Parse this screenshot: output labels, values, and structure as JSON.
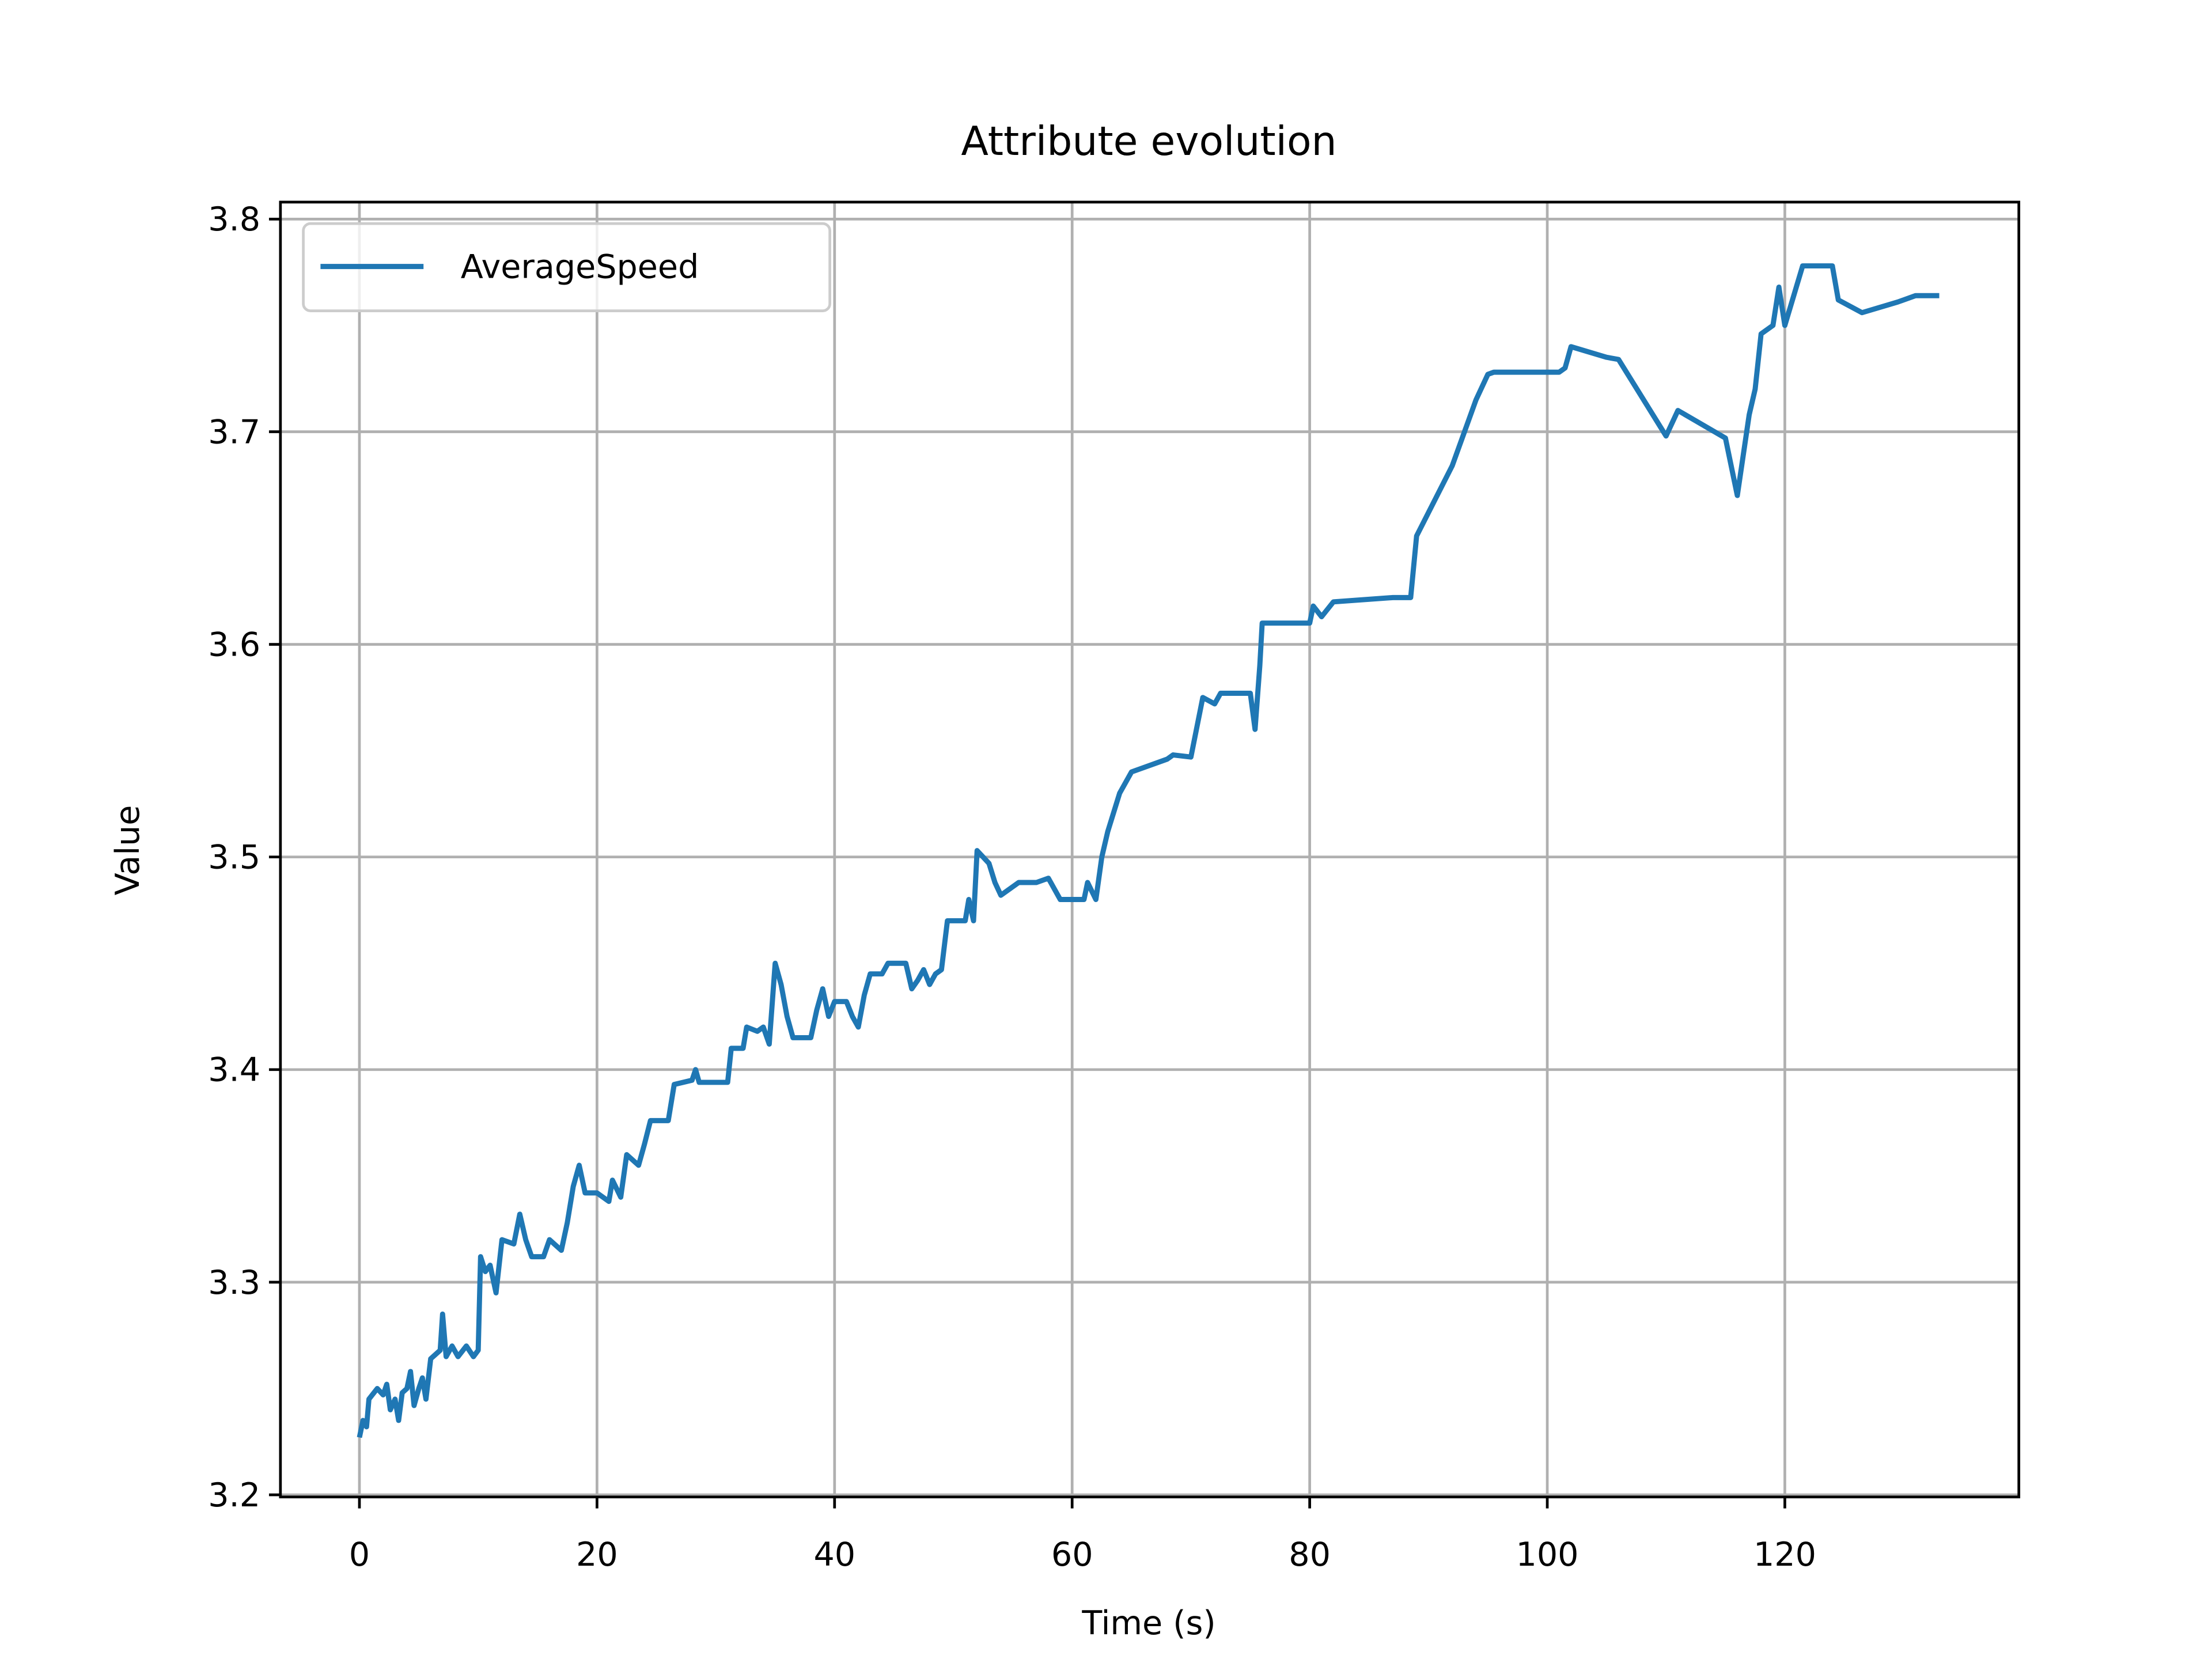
{
  "chart_data": {
    "type": "line",
    "title": "Attribute evolution",
    "x_label": "Time (s)",
    "y_label": "Value",
    "xlim": [
      -6.65,
      139.7
    ],
    "ylim": [
      3.199,
      3.808
    ],
    "xticks": [
      0,
      20,
      40,
      60,
      80,
      100,
      120
    ],
    "yticks": [
      3.2,
      3.3,
      3.4,
      3.5,
      3.6,
      3.7,
      3.8
    ],
    "grid": true,
    "legend": "upper left",
    "series": [
      {
        "name": "AverageSpeed",
        "color": "#1f77b4",
        "x": [
          0,
          0.3,
          0.6,
          0.8,
          1.5,
          2,
          2.3,
          2.6,
          3,
          3.3,
          3.6,
          4,
          4.3,
          4.6,
          5,
          5.3,
          5.6,
          6,
          6.8,
          7,
          7.3,
          7.8,
          8.3,
          9,
          9.6,
          10,
          10.2,
          10.6,
          11,
          11.5,
          12,
          13,
          13.5,
          14,
          14.5,
          15.5,
          16,
          17,
          17.5,
          18,
          18.5,
          19,
          20,
          21,
          21.3,
          22,
          22.5,
          23.5,
          24,
          24.5,
          26,
          26.5,
          28,
          28.3,
          28.6,
          31,
          31.3,
          32.3,
          32.6,
          33.5,
          34,
          34.5,
          35,
          35.5,
          36,
          36.5,
          38,
          38.5,
          39,
          39.5,
          40,
          41,
          41.5,
          42,
          42.5,
          43,
          44,
          44.5,
          46,
          46.5,
          47,
          47.5,
          48,
          48.5,
          49,
          49.5,
          51,
          51.3,
          51.7,
          52,
          53,
          53.5,
          54,
          55.5,
          57,
          58,
          59,
          61,
          61.3,
          62,
          62.5,
          63,
          64,
          65,
          68,
          68.5,
          70,
          71,
          72,
          72.5,
          75,
          75.4,
          75.8,
          76,
          80,
          80.3,
          81,
          82,
          87,
          88.5,
          89,
          92,
          94,
          95,
          95.5,
          101,
          101.5,
          102,
          105,
          106,
          110,
          111,
          115,
          116,
          117,
          117.5,
          118,
          119,
          119.5,
          120,
          121.5,
          124,
          124.5,
          126.5,
          129.5,
          131,
          133
        ],
        "values": [
          3.227,
          3.235,
          3.232,
          3.245,
          3.25,
          3.247,
          3.252,
          3.24,
          3.245,
          3.235,
          3.248,
          3.25,
          3.258,
          3.242,
          3.25,
          3.255,
          3.245,
          3.264,
          3.268,
          3.285,
          3.265,
          3.27,
          3.265,
          3.27,
          3.265,
          3.268,
          3.312,
          3.305,
          3.308,
          3.295,
          3.32,
          3.318,
          3.332,
          3.32,
          3.312,
          3.312,
          3.32,
          3.315,
          3.328,
          3.345,
          3.355,
          3.342,
          3.342,
          3.338,
          3.348,
          3.34,
          3.36,
          3.355,
          3.365,
          3.376,
          3.376,
          3.393,
          3.395,
          3.4,
          3.394,
          3.394,
          3.41,
          3.41,
          3.42,
          3.418,
          3.42,
          3.412,
          3.45,
          3.44,
          3.425,
          3.415,
          3.415,
          3.428,
          3.438,
          3.425,
          3.432,
          3.432,
          3.425,
          3.42,
          3.435,
          3.445,
          3.445,
          3.45,
          3.45,
          3.438,
          3.442,
          3.447,
          3.44,
          3.445,
          3.447,
          3.47,
          3.47,
          3.48,
          3.47,
          3.503,
          3.497,
          3.488,
          3.482,
          3.488,
          3.488,
          3.49,
          3.48,
          3.48,
          3.488,
          3.48,
          3.5,
          3.512,
          3.53,
          3.54,
          3.546,
          3.548,
          3.547,
          3.575,
          3.572,
          3.577,
          3.577,
          3.56,
          3.59,
          3.61,
          3.61,
          3.618,
          3.613,
          3.62,
          3.622,
          3.622,
          3.651,
          3.684,
          3.715,
          3.727,
          3.728,
          3.728,
          3.73,
          3.74,
          3.735,
          3.734,
          3.698,
          3.71,
          3.697,
          3.67,
          3.708,
          3.72,
          3.746,
          3.75,
          3.768,
          3.75,
          3.778,
          3.778,
          3.762,
          3.756,
          3.761,
          3.764,
          3.764
        ]
      }
    ]
  }
}
